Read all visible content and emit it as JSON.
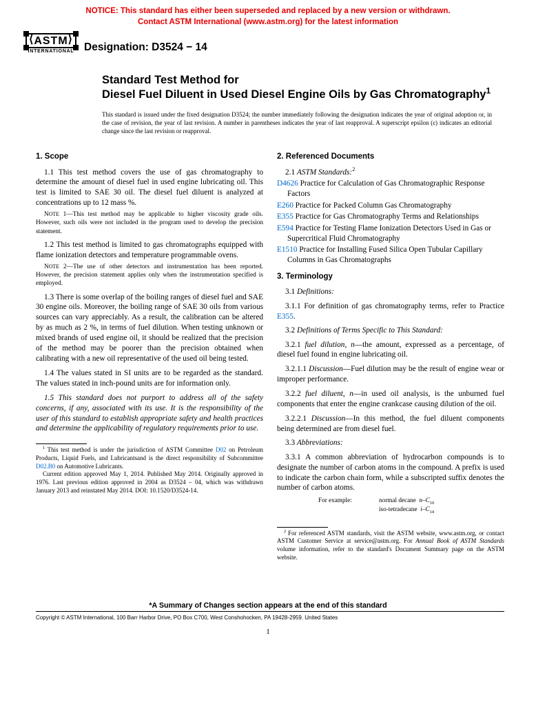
{
  "notice": {
    "line1": "NOTICE: This standard has either been superseded and replaced by a new version or withdrawn.",
    "line2": "Contact ASTM International (www.astm.org) for the latest information"
  },
  "logo": {
    "text": "ASTM",
    "sub": "INTERNATIONAL"
  },
  "designation": "Designation: D3524 − 14",
  "title": {
    "lead": "Standard Test Method for",
    "main": "Diesel Fuel Diluent in Used Diesel Engine Oils by Gas Chromatography",
    "sup": "1"
  },
  "issued": "This standard is issued under the fixed designation D3524; the number immediately following the designation indicates the year of original adoption or, in the case of revision, the year of last revision. A number in parentheses indicates the year of last reapproval. A superscript epsilon (ε) indicates an editorial change since the last revision or reapproval.",
  "left": {
    "scope_head": "1. Scope",
    "p11": "1.1 This test method covers the use of gas chromatography to determine the amount of diesel fuel in used engine lubricating oil. This test is limited to SAE 30 oil. The diesel fuel diluent is analyzed at concentrations up to 12 mass %.",
    "note1": "NOTE 1—This test method may be applicable to higher viscosity grade oils. However, such oils were not included in the program used to develop the precision statement.",
    "p12": "1.2 This test method is limited to gas chromatographs equipped with flame ionization detectors and temperature programmable ovens.",
    "note2": "NOTE 2—The use of other detectors and instrumentation has been reported. However, the precision statement applies only when the instrumentation specified is employed.",
    "p13": "1.3 There is some overlap of the boiling ranges of diesel fuel and SAE 30 engine oils. Moreover, the boiling range of SAE 30 oils from various sources can vary appreciably. As a result, the calibration can be altered by as much as 2 %, in terms of fuel dilution. When testing unknown or mixed brands of used engine oil, it should be realized that the precision of the method may be poorer than the precision obtained when calibrating with a new oil representative of the used oil being tested.",
    "p14": "1.4 The values stated in SI units are to be regarded as the standard. The values stated in inch-pound units are for information only.",
    "p15": "1.5 This standard does not purport to address all of the safety concerns, if any, associated with its use. It is the responsibility of the user of this standard to establish appropriate safety and health practices and determine the applicability of regulatory requirements prior to use.",
    "fn1a": "This test method is under the jurisdiction of ASTM Committee ",
    "fn1b": " on Petroleum Products, Liquid Fuels, and Lubricantsand is the direct responsibility of Subcommittee ",
    "fn1c": " on Automotive Lubricants.",
    "fn1_link1": "D02",
    "fn1_link2": "D02.B0",
    "fn1d": "Current edition approved May 1, 2014. Published May 2014. Originally approved in 1976. Last previous edition approved in 2004 as D3524 – 04, which was withdrawn January 2013 and reinstated May 2014. DOI: 10.1520/D3524-14."
  },
  "right": {
    "ref_head": "2. Referenced Documents",
    "p21_a": "2.1 ",
    "p21_b": "ASTM Standards:",
    "p21_sup": "2",
    "refs": [
      {
        "id": "D4626",
        "text": "Practice for Calculation of Gas Chromatographic Response Factors"
      },
      {
        "id": "E260",
        "text": "Practice for Packed Column Gas Chromatography"
      },
      {
        "id": "E355",
        "text": "Practice for Gas Chromatography Terms and Relationships"
      },
      {
        "id": "E594",
        "text": "Practice for Testing Flame Ionization Detectors Used in Gas or Supercritical Fluid Chromatography"
      },
      {
        "id": "E1510",
        "text": "Practice for Installing Fused Silica Open Tubular Capillary Columns in Gas Chromatographs"
      }
    ],
    "term_head": "3. Terminology",
    "p31": "3.1 Definitions:",
    "p311a": "3.1.1 For definition of gas chromatography terms, refer to Practice ",
    "p311b": "E355",
    "p311c": ".",
    "p32": "3.2 Definitions of Terms Specific to This Standard:",
    "p321": "3.2.1 fuel dilution, n—the amount, expressed as a percentage, of diesel fuel found in engine lubricating oil.",
    "p3211": "3.2.1.1 Discussion—Fuel dilution may be the result of engine wear or improper performance.",
    "p322": "3.2.2 fuel diluent, n—in used oil analysis, is the unburned fuel components that enter the engine crankcase causing dilution of the oil.",
    "p3221": "3.2.2.1 Discussion—In this method, the fuel diluent components being determined are from diesel fuel.",
    "p33": "3.3 Abbreviations:",
    "p331": "3.3.1 A common abbreviation of hydrocarbon compounds is to designate the number of carbon atoms in the compound. A prefix is used to indicate the carbon chain form, while a subscripted suffix denotes the number of carbon atoms.",
    "ex_label": "For example:",
    "ex1a": "normal decane",
    "ex1b": "n–C",
    "ex1c": "10",
    "ex2a": "iso-tetradecane",
    "ex2b": "i–C",
    "ex2c": "14",
    "fn2a": "For referenced ASTM standards, visit the ASTM website, www.astm.org, or contact ASTM Customer Service at service@astm.org. For ",
    "fn2b": "Annual Book of ASTM Standards",
    "fn2c": " volume information, refer to the standard's Document Summary page on the ASTM website."
  },
  "summary": "*A Summary of Changes section appears at the end of this standard",
  "copyright": "Copyright © ASTM International, 100 Barr Harbor Drive, PO Box C700, West Conshohocken, PA 19428-2959. United States",
  "pagenum": "1"
}
